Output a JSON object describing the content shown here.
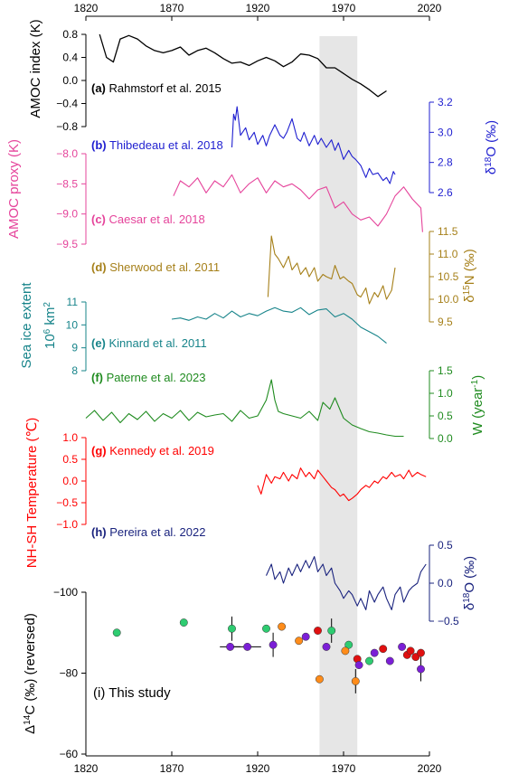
{
  "chart_data": {
    "type": "line",
    "x_axis": {
      "range": [
        1820,
        2020
      ],
      "ticks": [
        1820,
        1870,
        1920,
        1970,
        2020
      ],
      "tick_labels": [
        "1820",
        "1870",
        "1920",
        "1970",
        "2020"
      ]
    },
    "highlight": {
      "x_range": [
        1956,
        1978
      ],
      "color": "#e6e6e6"
    },
    "panels": [
      {
        "id": "a",
        "label": "(a)",
        "citation": "Rahmstorf et al. 2015",
        "color": "#000000",
        "ylabel": "AMOC index (K)",
        "axis_side": "left",
        "ylim": [
          -0.8,
          0.8
        ],
        "ticks": [
          -0.8,
          -0.4,
          0.0,
          0.4,
          0.8
        ],
        "tick_labels": [
          "-0.8",
          "-0.4",
          "0.0",
          "0.4",
          "0.8"
        ],
        "x": [
          1828,
          1832,
          1836,
          1840,
          1845,
          1850,
          1855,
          1860,
          1865,
          1870,
          1875,
          1880,
          1885,
          1890,
          1895,
          1900,
          1905,
          1910,
          1915,
          1920,
          1925,
          1930,
          1935,
          1940,
          1945,
          1950,
          1955,
          1960,
          1965,
          1970,
          1975,
          1980,
          1985,
          1990,
          1995
        ],
        "y": [
          0.8,
          0.4,
          0.32,
          0.72,
          0.78,
          0.72,
          0.6,
          0.52,
          0.48,
          0.52,
          0.58,
          0.44,
          0.52,
          0.56,
          0.48,
          0.38,
          0.3,
          0.32,
          0.26,
          0.34,
          0.4,
          0.34,
          0.24,
          0.32,
          0.46,
          0.44,
          0.38,
          0.22,
          0.22,
          0.12,
          0.02,
          -0.06,
          -0.16,
          -0.28,
          -0.18
        ]
      },
      {
        "id": "b",
        "label": "(b)",
        "citation": "Thibedeau et al. 2018",
        "color": "#1f1fd0",
        "ylabel": "δ18O (‰)",
        "axis_side": "right",
        "ylim": [
          2.6,
          3.2
        ],
        "ticks": [
          2.6,
          2.8,
          3.0,
          3.2
        ],
        "tick_labels": [
          "2.6",
          "2.8",
          "3.0",
          "3.2"
        ],
        "x": [
          1905,
          1906,
          1907,
          1908,
          1910,
          1913,
          1915,
          1918,
          1920,
          1923,
          1925,
          1927,
          1930,
          1933,
          1935,
          1937,
          1940,
          1943,
          1945,
          1947,
          1950,
          1953,
          1955,
          1957,
          1960,
          1963,
          1965,
          1967,
          1970,
          1973,
          1975,
          1977,
          1980,
          1983,
          1985,
          1987,
          1990,
          1993,
          1995,
          1997,
          1999,
          2000
        ],
        "y": [
          2.9,
          3.12,
          3.08,
          3.17,
          2.98,
          3.03,
          2.95,
          3.0,
          2.92,
          2.98,
          2.91,
          2.98,
          3.05,
          2.98,
          2.96,
          3.0,
          3.09,
          2.96,
          2.94,
          3.0,
          2.91,
          2.98,
          2.92,
          2.96,
          2.9,
          2.95,
          2.88,
          2.93,
          2.82,
          2.88,
          2.84,
          2.82,
          2.78,
          2.7,
          2.76,
          2.72,
          2.73,
          2.68,
          2.7,
          2.66,
          2.74,
          2.72
        ]
      },
      {
        "id": "c",
        "label": "(c)",
        "citation": "Caesar et al. 2018",
        "color": "#e5449b",
        "ylabel": "AMOC proxy (K)",
        "axis_side": "left",
        "ylim": [
          -9.5,
          -8.0
        ],
        "ticks": [
          -9.5,
          -9.0,
          -8.5,
          -8.0
        ],
        "tick_labels": [
          "-9.5",
          "-9.0",
          "-8.5",
          "-8.0"
        ],
        "x": [
          1871,
          1875,
          1880,
          1885,
          1890,
          1895,
          1900,
          1905,
          1910,
          1915,
          1920,
          1925,
          1930,
          1935,
          1940,
          1945,
          1950,
          1955,
          1960,
          1965,
          1970,
          1975,
          1980,
          1985,
          1990,
          1995,
          2000,
          2005,
          2010,
          2015,
          2016
        ],
        "y": [
          -8.7,
          -8.45,
          -8.55,
          -8.4,
          -8.65,
          -8.45,
          -8.55,
          -8.35,
          -8.65,
          -8.5,
          -8.4,
          -8.65,
          -8.45,
          -8.55,
          -8.5,
          -8.6,
          -8.75,
          -8.6,
          -8.55,
          -8.9,
          -8.8,
          -9.0,
          -9.1,
          -9.05,
          -9.2,
          -9.0,
          -8.7,
          -8.55,
          -8.75,
          -8.9,
          -9.3
        ]
      },
      {
        "id": "d",
        "label": "(d)",
        "citation": "Sherwood et al. 2011",
        "color": "#a6801a",
        "ylabel": "δ15N (‰)",
        "axis_side": "right",
        "ylim": [
          9.5,
          11.5
        ],
        "ticks": [
          9.5,
          10.0,
          10.5,
          11.0,
          11.5
        ],
        "tick_labels": [
          "9.5",
          "10.0",
          "10.5",
          "11.0",
          "11.5"
        ],
        "x": [
          1926,
          1928,
          1930,
          1932,
          1935,
          1938,
          1940,
          1943,
          1945,
          1948,
          1950,
          1953,
          1955,
          1958,
          1960,
          1963,
          1965,
          1968,
          1970,
          1973,
          1975,
          1978,
          1980,
          1983,
          1985,
          1988,
          1990,
          1993,
          1995,
          1998,
          2000
        ],
        "y": [
          10.05,
          11.4,
          11.0,
          10.9,
          10.7,
          10.95,
          10.65,
          10.8,
          10.55,
          10.7,
          10.5,
          10.7,
          10.4,
          10.55,
          10.5,
          10.45,
          10.75,
          10.45,
          10.5,
          10.4,
          10.35,
          10.1,
          10.05,
          10.25,
          9.9,
          10.15,
          10.05,
          10.3,
          10.0,
          10.2,
          10.7
        ]
      },
      {
        "id": "e",
        "label": "(e)",
        "citation": "Kinnard et al. 2011",
        "color": "#17848a",
        "ylabel": "Sea ice extent 10^6 km^2",
        "axis_side": "left",
        "ylim": [
          8,
          11
        ],
        "ticks": [
          8,
          9,
          10,
          11
        ],
        "tick_labels": [
          "8",
          "9",
          "10",
          "11"
        ],
        "x": [
          1870,
          1875,
          1880,
          1885,
          1890,
          1895,
          1900,
          1905,
          1910,
          1915,
          1920,
          1925,
          1930,
          1935,
          1940,
          1945,
          1950,
          1955,
          1960,
          1965,
          1970,
          1975,
          1980,
          1985,
          1990,
          1995
        ],
        "y": [
          10.25,
          10.3,
          10.2,
          10.35,
          10.25,
          10.5,
          10.3,
          10.6,
          10.35,
          10.5,
          10.4,
          10.6,
          10.75,
          10.6,
          10.55,
          10.75,
          10.45,
          10.65,
          10.7,
          10.35,
          10.5,
          10.25,
          9.9,
          9.7,
          9.5,
          9.2
        ]
      },
      {
        "id": "f",
        "label": "(f)",
        "citation": "Paterne et al. 2023",
        "color": "#1f8b1f",
        "ylabel": "W (year-1)",
        "axis_side": "right",
        "ylim": [
          0.0,
          1.5
        ],
        "ticks": [
          0.0,
          0.5,
          1.0,
          1.5
        ],
        "tick_labels": [
          "0.0",
          "0.5",
          "1.0",
          "1.5"
        ],
        "x": [
          1820,
          1825,
          1830,
          1835,
          1840,
          1845,
          1850,
          1855,
          1860,
          1865,
          1870,
          1875,
          1880,
          1885,
          1890,
          1895,
          1900,
          1905,
          1910,
          1915,
          1920,
          1925,
          1928,
          1930,
          1932,
          1935,
          1940,
          1945,
          1950,
          1955,
          1958,
          1962,
          1965,
          1970,
          1975,
          1980,
          1985,
          1990,
          1995,
          2000,
          2005
        ],
        "y": [
          0.45,
          0.62,
          0.4,
          0.58,
          0.35,
          0.55,
          0.42,
          0.6,
          0.38,
          0.55,
          0.45,
          0.62,
          0.4,
          0.58,
          0.48,
          0.52,
          0.55,
          0.38,
          0.62,
          0.45,
          0.5,
          0.85,
          1.3,
          0.85,
          0.6,
          0.55,
          0.5,
          0.45,
          0.6,
          0.4,
          0.8,
          0.65,
          0.9,
          0.45,
          0.3,
          0.22,
          0.15,
          0.12,
          0.08,
          0.05,
          0.05
        ]
      },
      {
        "id": "g",
        "label": "(g)",
        "citation": "Kennedy et al. 2019",
        "color": "#ff0000",
        "ylabel": "NH-SH Temperature (℃)",
        "axis_side": "left",
        "ylim": [
          -1.0,
          1.0
        ],
        "ticks": [
          -1.0,
          -0.5,
          0.0,
          0.5,
          1.0
        ],
        "tick_labels": [
          "-1.0",
          "-0.5",
          "0.0",
          "0.5",
          "1.0"
        ],
        "x": [
          1920,
          1922,
          1925,
          1928,
          1930,
          1933,
          1935,
          1938,
          1940,
          1943,
          1945,
          1948,
          1950,
          1953,
          1955,
          1958,
          1960,
          1963,
          1965,
          1968,
          1970,
          1973,
          1975,
          1978,
          1980,
          1983,
          1985,
          1988,
          1990,
          1993,
          1995,
          1998,
          2000,
          2003,
          2005,
          2008,
          2010,
          2013,
          2015,
          2018
        ],
        "y": [
          -0.1,
          -0.3,
          0.15,
          -0.05,
          0.1,
          0.05,
          0.2,
          0.0,
          0.15,
          0.05,
          0.3,
          0.1,
          0.2,
          0.05,
          0.25,
          0.1,
          0.0,
          -0.15,
          -0.2,
          -0.35,
          -0.3,
          -0.45,
          -0.4,
          -0.3,
          -0.2,
          -0.1,
          -0.15,
          0.0,
          -0.05,
          0.1,
          0.05,
          0.2,
          0.1,
          0.15,
          0.05,
          0.25,
          0.1,
          0.2,
          0.15,
          0.1
        ]
      },
      {
        "id": "h",
        "label": "(h)",
        "citation": "Pereira et al. 2022",
        "color": "#1a237e",
        "ylabel": "δ18O (‰)",
        "axis_side": "right",
        "ylim": [
          -0.5,
          0.5
        ],
        "ticks": [
          -0.5,
          0.0,
          0.5
        ],
        "tick_labels": [
          "-0.5",
          "0.0",
          "0.5"
        ],
        "x": [
          1925,
          1928,
          1930,
          1933,
          1935,
          1938,
          1940,
          1943,
          1945,
          1948,
          1950,
          1953,
          1955,
          1958,
          1960,
          1963,
          1965,
          1968,
          1970,
          1973,
          1975,
          1978,
          1980,
          1983,
          1985,
          1988,
          1990,
          1993,
          1995,
          1998,
          2000,
          2003,
          2005,
          2008,
          2010,
          2013,
          2015,
          2018
        ],
        "y": [
          0.1,
          0.25,
          0.05,
          0.15,
          0.0,
          0.2,
          0.1,
          0.25,
          0.15,
          0.3,
          0.2,
          0.35,
          0.15,
          0.25,
          0.1,
          0.2,
          0.0,
          -0.1,
          -0.2,
          -0.1,
          -0.15,
          -0.3,
          -0.2,
          -0.35,
          -0.1,
          -0.25,
          -0.15,
          -0.05,
          -0.2,
          -0.35,
          -0.15,
          -0.05,
          -0.25,
          -0.1,
          -0.05,
          0.0,
          0.15,
          0.25
        ]
      }
    ],
    "scatter_panel": {
      "id": "i",
      "caption": "(i) This study",
      "ylabel": "Δ14C (‰) (reversed)",
      "axis_side": "left",
      "reversed": true,
      "ylim": [
        -100,
        -60
      ],
      "ticks": [
        -100,
        -80,
        -60
      ],
      "tick_labels": [
        "-100",
        "-80",
        "-60"
      ],
      "points": [
        {
          "x": 1838,
          "y": -90.0,
          "color": "#2ecc71"
        },
        {
          "x": 1877,
          "y": -92.5,
          "color": "#2ecc71"
        },
        {
          "x": 1905,
          "y": -91.0,
          "color": "#2ecc71",
          "yerr": 3
        },
        {
          "x": 1925,
          "y": -91.0,
          "color": "#2ecc71"
        },
        {
          "x": 1963,
          "y": -90.5,
          "color": "#2ecc71",
          "yerr": 3
        },
        {
          "x": 1973,
          "y": -87.0,
          "color": "#2ecc71"
        },
        {
          "x": 1985,
          "y": -83.0,
          "color": "#2ecc71"
        },
        {
          "x": 1934,
          "y": -91.5,
          "color": "#ff8c1a"
        },
        {
          "x": 1944,
          "y": -88.0,
          "color": "#ff8c1a"
        },
        {
          "x": 1956,
          "y": -78.5,
          "color": "#ff8c1a"
        },
        {
          "x": 1971,
          "y": -85.5,
          "color": "#ff8c1a"
        },
        {
          "x": 1977,
          "y": -78.0,
          "color": "#ff8c1a",
          "yerr": 3
        },
        {
          "x": 1955,
          "y": -90.5,
          "color": "#e01010"
        },
        {
          "x": 1978,
          "y": -83.5,
          "color": "#e01010"
        },
        {
          "x": 1993,
          "y": -86.0,
          "color": "#e01010"
        },
        {
          "x": 2007,
          "y": -84.5,
          "color": "#e01010"
        },
        {
          "x": 2009,
          "y": -85.5,
          "color": "#e01010"
        },
        {
          "x": 2012,
          "y": -84.0,
          "color": "#e01010"
        },
        {
          "x": 2015,
          "y": -85.0,
          "color": "#e01010"
        },
        {
          "x": 1904,
          "y": -86.5,
          "color": "#7b1fd6",
          "xerr": 3
        },
        {
          "x": 1914,
          "y": -86.5,
          "color": "#7b1fd6",
          "xerr": 4
        },
        {
          "x": 1929,
          "y": -87.0,
          "color": "#7b1fd6",
          "yerr": 3
        },
        {
          "x": 1948,
          "y": -89.0,
          "color": "#7b1fd6"
        },
        {
          "x": 1960,
          "y": -86.5,
          "color": "#7b1fd6"
        },
        {
          "x": 1979,
          "y": -82.0,
          "color": "#7b1fd6"
        },
        {
          "x": 1988,
          "y": -85.0,
          "color": "#7b1fd6"
        },
        {
          "x": 1997,
          "y": -83.0,
          "color": "#7b1fd6"
        },
        {
          "x": 2004,
          "y": -86.5,
          "color": "#7b1fd6"
        },
        {
          "x": 2015,
          "y": -81.0,
          "color": "#7b1fd6",
          "yerr": 3
        }
      ]
    }
  }
}
